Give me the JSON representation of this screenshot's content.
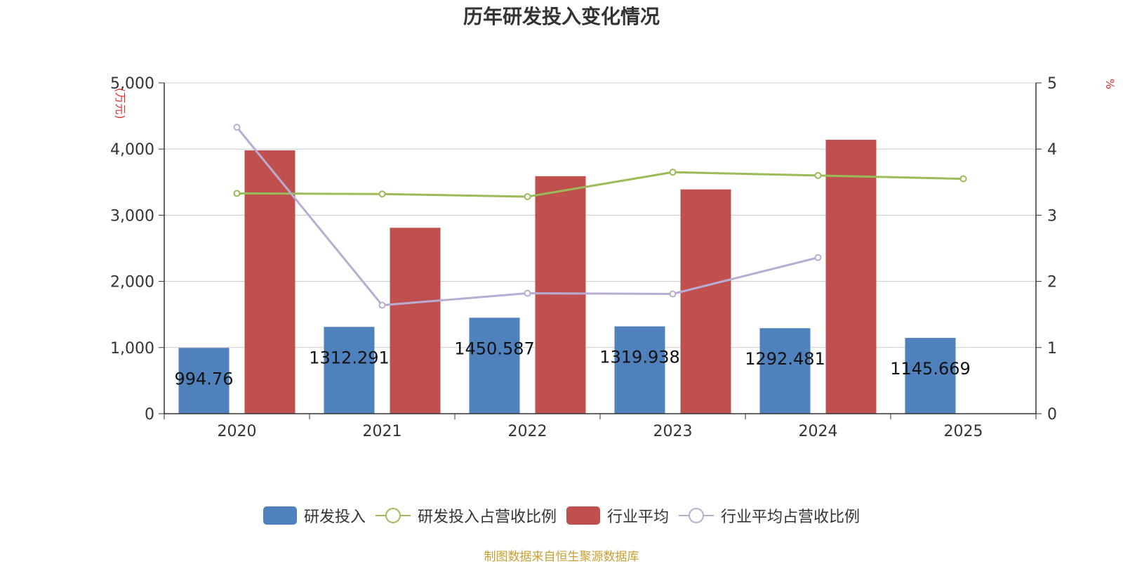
{
  "title": "历年研发投入变化情况",
  "source": "制图数据来自恒生聚源数据库",
  "colors": {
    "rd_bar": "#4f81bd",
    "industry_bar": "#c0504d",
    "rd_ratio_line": "#9bbb59",
    "industry_ratio_line": "#b9acd3",
    "unit_label": "#e03030",
    "source_text": "#c8a032"
  },
  "chart_data": {
    "type": "bar",
    "title": "历年研发投入变化情况",
    "categories": [
      "2020",
      "2021",
      "2022",
      "2023",
      "2024",
      "2025"
    ],
    "y_left": {
      "unit": "(万元)",
      "lim": [
        0,
        5000
      ],
      "ticks": [
        "0",
        "1,000",
        "2,000",
        "3,000",
        "4,000",
        "5,000"
      ],
      "tick_values": [
        0,
        1000,
        2000,
        3000,
        4000,
        5000
      ]
    },
    "y_right": {
      "unit": "%",
      "lim": [
        0,
        5
      ],
      "ticks": [
        "0",
        "1",
        "2",
        "3",
        "4",
        "5"
      ],
      "tick_values": [
        0,
        1,
        2,
        3,
        4,
        5
      ]
    },
    "grid": true,
    "legend_position": "bottom",
    "series": [
      {
        "name": "研发投入",
        "type": "bar",
        "axis": "left",
        "values": [
          994.76,
          1312.291,
          1450.587,
          1319.938,
          1292.481,
          1145.669
        ],
        "labels": [
          "994.76",
          "1312.291",
          "1450.587",
          "1319.938",
          "1292.481",
          "1145.669"
        ]
      },
      {
        "name": "研发投入占营收比例",
        "type": "line",
        "axis": "right",
        "values": [
          3.33,
          3.32,
          3.28,
          3.65,
          3.6,
          3.55
        ]
      },
      {
        "name": "行业平均",
        "type": "bar",
        "axis": "left",
        "values": [
          3980,
          2810,
          3590,
          3390,
          4140,
          null
        ]
      },
      {
        "name": "行业平均占营收比例",
        "type": "line",
        "axis": "right",
        "values": [
          4.33,
          1.64,
          1.82,
          1.81,
          2.36,
          null
        ]
      }
    ]
  }
}
